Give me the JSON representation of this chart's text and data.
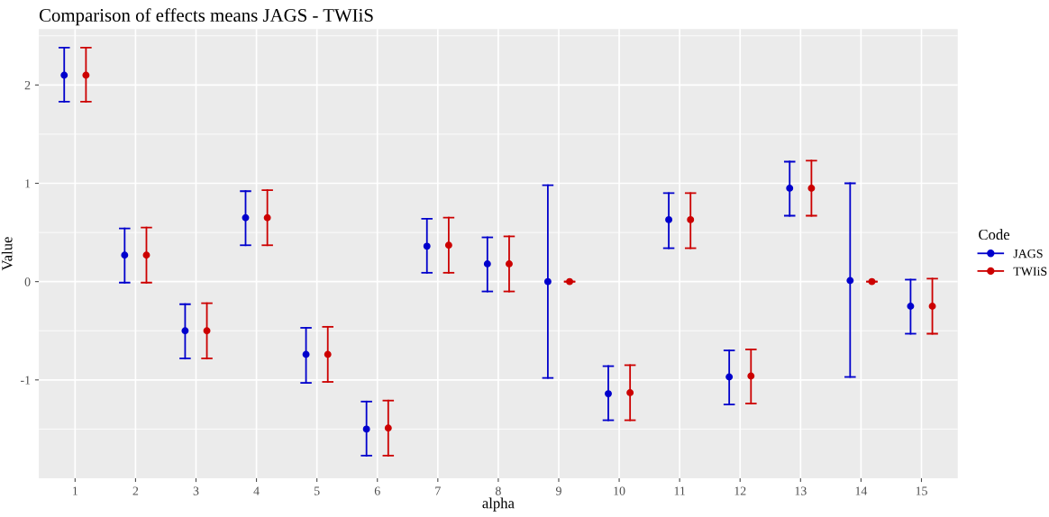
{
  "chart_data": {
    "type": "scatter",
    "title": "Comparison of effects means JAGS - TWIiS",
    "xlabel": "alpha",
    "ylabel": "Value",
    "legend_title": "Code",
    "categories": [
      "1",
      "2",
      "3",
      "4",
      "5",
      "6",
      "7",
      "8",
      "9",
      "10",
      "11",
      "12",
      "13",
      "14",
      "15"
    ],
    "series": [
      {
        "name": "JAGS",
        "color": "#0000cc",
        "values": [
          2.1,
          0.27,
          -0.5,
          0.65,
          -0.74,
          -1.5,
          0.36,
          0.18,
          0.0,
          -1.14,
          0.63,
          -0.97,
          0.95,
          0.01,
          -0.25
        ],
        "errors": [
          [
            1.83,
            2.38
          ],
          [
            -0.01,
            0.54
          ],
          [
            -0.78,
            -0.23
          ],
          [
            0.37,
            0.92
          ],
          [
            -1.03,
            -0.47
          ],
          [
            -1.77,
            -1.22
          ],
          [
            0.09,
            0.64
          ],
          [
            -0.1,
            0.45
          ],
          [
            -0.98,
            0.98
          ],
          [
            -1.41,
            -0.86
          ],
          [
            0.34,
            0.9
          ],
          [
            -1.25,
            -0.7
          ],
          [
            0.67,
            1.22
          ],
          [
            -0.97,
            1.0
          ],
          [
            -0.53,
            0.02
          ]
        ]
      },
      {
        "name": "TWIiS",
        "color": "#cc0000",
        "values": [
          2.1,
          0.27,
          -0.5,
          0.65,
          -0.74,
          -1.49,
          0.37,
          0.18,
          0.0,
          -1.13,
          0.63,
          -0.96,
          0.95,
          0.0,
          -0.25
        ],
        "errors": [
          [
            1.83,
            2.38
          ],
          [
            -0.01,
            0.55
          ],
          [
            -0.78,
            -0.22
          ],
          [
            0.37,
            0.93
          ],
          [
            -1.02,
            -0.46
          ],
          [
            -1.77,
            -1.21
          ],
          [
            0.09,
            0.65
          ],
          [
            -0.1,
            0.46
          ],
          [
            0.0,
            0.0
          ],
          [
            -1.41,
            -0.85
          ],
          [
            0.34,
            0.9
          ],
          [
            -1.24,
            -0.69
          ],
          [
            0.67,
            1.23
          ],
          [
            0.0,
            0.0
          ],
          [
            -0.53,
            0.03
          ]
        ]
      }
    ],
    "ylim": [
      -2.0,
      2.57
    ],
    "yticks": [
      -1,
      0,
      1,
      2
    ],
    "grid": true,
    "legend": "right",
    "marker": "circle"
  }
}
